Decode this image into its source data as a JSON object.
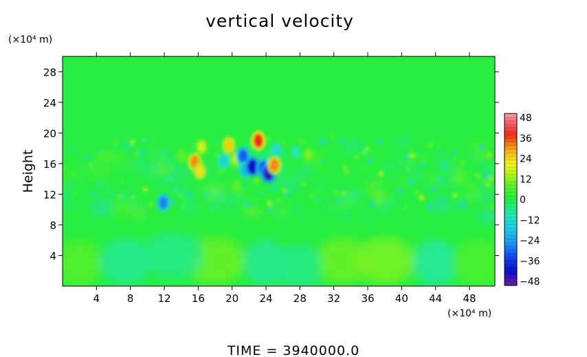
{
  "chart_data": {
    "type": "heatmap",
    "title": "vertical velocity",
    "ylabel": "Height",
    "y_unit": "(×10⁴ m)",
    "x_unit": "(×10⁴ m)",
    "xlim": [
      0,
      51
    ],
    "ylim": [
      0,
      30
    ],
    "x_ticks": [
      "4",
      "8",
      "12",
      "16",
      "20",
      "24",
      "28",
      "32",
      "36",
      "40",
      "44",
      "48"
    ],
    "y_ticks": [
      "4",
      "8",
      "12",
      "16",
      "20",
      "24",
      "28"
    ],
    "colorbar": {
      "min": -48,
      "max": 48,
      "tick_labels": [
        "48",
        "36",
        "24",
        "12",
        "0",
        "−12",
        "−24",
        "−36",
        "−48"
      ],
      "stops": [
        [
          -48,
          "#6a1fa6"
        ],
        [
          -40,
          "#0a10c8"
        ],
        [
          -32,
          "#1646f0"
        ],
        [
          -24,
          "#1c98f2"
        ],
        [
          -16,
          "#1ccce6"
        ],
        [
          -8,
          "#25e6b2"
        ],
        [
          0,
          "#22ee44"
        ],
        [
          8,
          "#5cf028"
        ],
        [
          14,
          "#b8f21e"
        ],
        [
          20,
          "#f4f01a"
        ],
        [
          28,
          "#f4a818"
        ],
        [
          36,
          "#ee2c18"
        ],
        [
          44,
          "#f06a78"
        ],
        [
          48,
          "#f4a8a8"
        ]
      ]
    },
    "grid": false,
    "features": [
      {
        "x": 11.9,
        "y": 10.9,
        "value": -26
      },
      {
        "x": 15.6,
        "y": 16.2,
        "value": 30
      },
      {
        "x": 16.2,
        "y": 15.0,
        "value": 22
      },
      {
        "x": 16.4,
        "y": 18.2,
        "value": 16
      },
      {
        "x": 19.6,
        "y": 18.4,
        "value": 24
      },
      {
        "x": 20.4,
        "y": 16.6,
        "value": 14
      },
      {
        "x": 21.3,
        "y": 17.0,
        "value": -30
      },
      {
        "x": 21.6,
        "y": 15.2,
        "value": -20
      },
      {
        "x": 22.4,
        "y": 15.6,
        "value": -40
      },
      {
        "x": 23.1,
        "y": 19.0,
        "value": 36
      },
      {
        "x": 23.7,
        "y": 15.4,
        "value": -32
      },
      {
        "x": 24.3,
        "y": 14.8,
        "value": -42
      },
      {
        "x": 25.0,
        "y": 15.8,
        "value": 30
      },
      {
        "x": 19.0,
        "y": 16.3,
        "value": -14
      },
      {
        "x": 25.2,
        "y": 17.8,
        "value": -12
      },
      {
        "x": 14.0,
        "y": 17.0,
        "value": 8
      },
      {
        "x": 29.0,
        "y": 17.2,
        "value": 10
      },
      {
        "x": 27.5,
        "y": 17.5,
        "value": -8
      },
      {
        "x": 20.5,
        "y": 13.0,
        "value": 8
      }
    ]
  },
  "footer": {
    "time_label": "TIME  =  3940000.0"
  }
}
